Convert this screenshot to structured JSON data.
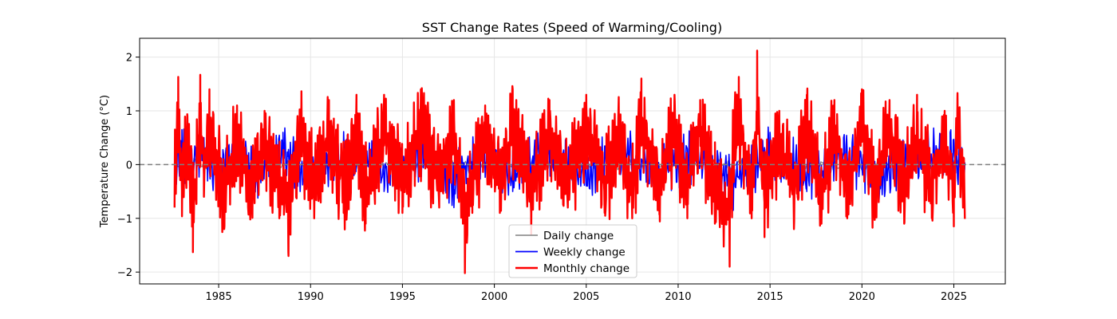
{
  "chart_data": {
    "type": "line",
    "title": "SST Change Rates (Speed of Warming/Cooling)",
    "xlabel": "",
    "ylabel": "Temperature Change (°C)",
    "xlim": [
      1982.6,
      2025.6
    ],
    "ylim": [
      -2.0,
      2.0
    ],
    "x_ticks": [
      1985,
      1990,
      1995,
      2000,
      2005,
      2010,
      2015,
      2020,
      2025
    ],
    "y_ticks": [
      -2,
      -1,
      0,
      1,
      2
    ],
    "y_tick_labels": [
      "−2",
      "−1",
      "0",
      "1",
      "2"
    ],
    "grid": true,
    "reference_line": {
      "y": 0,
      "style": "dashed",
      "color": "#808080"
    },
    "legend_placement": "lower-center",
    "series": [
      {
        "name": "Daily change",
        "color": "#808080",
        "x": [
          1982.6,
          1985,
          1990,
          1995,
          2000,
          2005,
          2010,
          2015,
          2020,
          2025.6
        ],
        "y": [
          0.1,
          0.05,
          -0.05,
          0.08,
          -0.06,
          0.04,
          -0.05,
          0.06,
          -0.04,
          0.02
        ]
      },
      {
        "name": "Weekly change",
        "color": "#0000ff",
        "x": [
          1982.6,
          1983.0,
          1983.5,
          1984.0,
          1985.0,
          1986.0,
          1987.0,
          1988.5,
          1990.0,
          1992.0,
          1994.0,
          1996.0,
          1997.8,
          1999.0,
          2001.0,
          2003.0,
          2005.0,
          2007.0,
          2009.0,
          2011.0,
          2013.0,
          2015.0,
          2017.0,
          2019.0,
          2021.0,
          2023.0,
          2024.8,
          2025.5
        ],
        "y": [
          0.2,
          0.65,
          -0.5,
          0.9,
          -0.6,
          0.7,
          -0.45,
          0.6,
          -0.4,
          0.55,
          -0.5,
          0.65,
          -0.8,
          0.6,
          -0.5,
          0.5,
          -0.4,
          0.5,
          -0.45,
          0.6,
          -0.85,
          0.6,
          -0.5,
          0.5,
          -0.45,
          0.5,
          0.6,
          -0.2
        ]
      },
      {
        "name": "Monthly change",
        "color": "#ff0000",
        "x": [
          1982.6,
          1982.8,
          1983.0,
          1983.3,
          1983.6,
          1984.0,
          1984.2,
          1984.5,
          1985.3,
          1986.0,
          1986.7,
          1987.5,
          1988.3,
          1988.8,
          1989.5,
          1990.2,
          1991.0,
          1991.8,
          1992.5,
          1993.0,
          1994.0,
          1995.0,
          1996.0,
          1997.0,
          1997.8,
          1998.4,
          1998.8,
          1999.5,
          2000.3,
          2001.0,
          2002.0,
          2003.0,
          2004.0,
          2005.0,
          2006.0,
          2006.8,
          2007.5,
          2008.0,
          2009.0,
          2009.8,
          2010.5,
          2011.2,
          2012.0,
          2012.8,
          2013.0,
          2013.3,
          2014.0,
          2014.3,
          2014.7,
          2015.5,
          2016.3,
          2017.0,
          2017.8,
          2018.5,
          2019.2,
          2020.0,
          2020.7,
          2021.5,
          2022.3,
          2023.0,
          2023.8,
          2024.5,
          2025.0,
          2025.2,
          2025.5
        ],
        "y": [
          -0.75,
          1.63,
          -0.5,
          0.9,
          -1.63,
          1.67,
          -0.6,
          1.4,
          -1.2,
          1.1,
          -0.8,
          1.0,
          -1.0,
          -1.7,
          1.1,
          -1.0,
          1.2,
          -0.9,
          1.3,
          -1.1,
          1.3,
          -0.9,
          1.4,
          -0.8,
          1.2,
          -2.02,
          -0.9,
          1.1,
          -0.9,
          1.4,
          -0.9,
          1.2,
          -0.8,
          1.3,
          -0.9,
          0.9,
          -1.0,
          1.6,
          -0.9,
          1.3,
          -1.0,
          1.2,
          -1.1,
          -1.9,
          0.8,
          1.63,
          -1.0,
          2.12,
          -1.35,
          1.0,
          -1.2,
          1.3,
          -1.1,
          1.2,
          -1.0,
          1.4,
          -1.0,
          1.2,
          -1.1,
          1.3,
          -1.0,
          1.0,
          -1.15,
          1.33,
          -0.8
        ]
      }
    ]
  }
}
